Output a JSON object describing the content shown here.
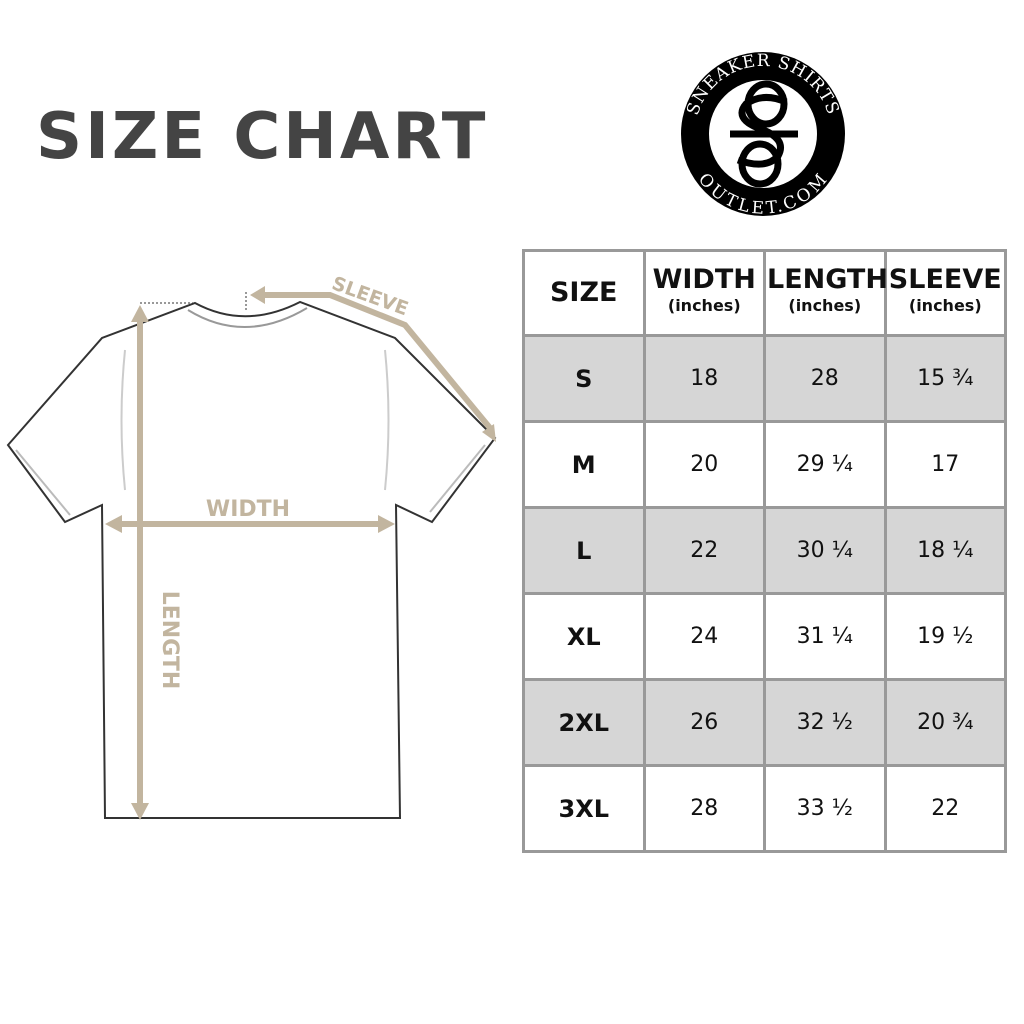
{
  "title": "SIZE CHART",
  "logo": {
    "top_text": "SNEAKER SHIRTS",
    "bottom_text": "OUTLET.COM",
    "monogram": "SS"
  },
  "diagram": {
    "sleeve_label": "SLEEVE",
    "width_label": "WIDTH",
    "length_label": "LENGTH",
    "accent_color": "#c2b59f"
  },
  "table": {
    "headers": [
      {
        "label": "SIZE",
        "unit": ""
      },
      {
        "label": "WIDTH",
        "unit": "(inches)"
      },
      {
        "label": "LENGTH",
        "unit": "(inches)"
      },
      {
        "label": "SLEEVE",
        "unit": "(inches)"
      }
    ],
    "rows": [
      [
        "S",
        "18",
        "28",
        "15 ¾"
      ],
      [
        "M",
        "20",
        "29 ¼",
        "17"
      ],
      [
        "L",
        "22",
        "30 ¼",
        "18 ¼"
      ],
      [
        "XL",
        "24",
        "31 ¼",
        "19 ½"
      ],
      [
        "2XL",
        "26",
        "32 ½",
        "20 ¾"
      ],
      [
        "3XL",
        "28",
        "33 ½",
        "22"
      ]
    ]
  }
}
